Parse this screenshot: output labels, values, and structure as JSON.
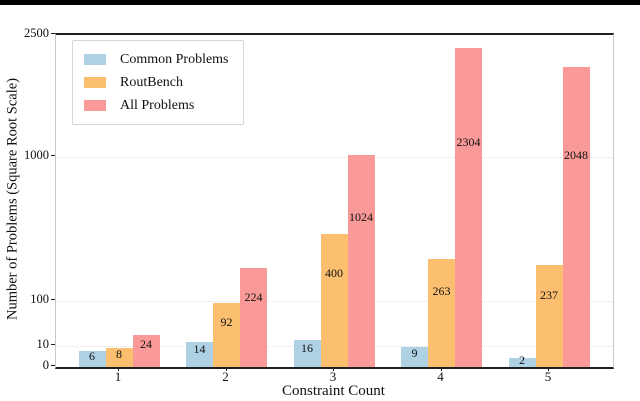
{
  "chart_data": {
    "type": "bar",
    "title": "",
    "xlabel": "Constraint Count",
    "ylabel": "Number of Problems (Square Root Scale)",
    "yscale": "sqrt",
    "ylim": [
      0,
      2500
    ],
    "ytick_labels": [
      "0",
      "10",
      "100",
      "1000",
      "2500"
    ],
    "ytick_values": [
      0,
      10,
      100,
      1000,
      2500
    ],
    "gridline_values": [
      10,
      100,
      1000
    ],
    "grid": "horizontal-dotted",
    "categories": [
      "1",
      "2",
      "3",
      "4",
      "5"
    ],
    "series": [
      {
        "name": "Common Problems",
        "color": "#aed1e4",
        "values": [
          6,
          14,
          16,
          9,
          2
        ]
      },
      {
        "name": "RoutBench",
        "color": "#fcbf6f",
        "values": [
          8,
          92,
          400,
          263,
          237
        ]
      },
      {
        "name": "All Problems",
        "color": "#f99a98",
        "values": [
          24,
          224,
          1024,
          2304,
          2048
        ]
      }
    ],
    "bar_labels_shown": true,
    "legend_position": "upper-left"
  },
  "colors": {
    "figure_border": "#000000",
    "background": "#ffffff",
    "axis_dark": "#1f1f1f",
    "axis_light": "#c9c9c9",
    "gridline": "#e8e2e2",
    "text": "#111111"
  }
}
